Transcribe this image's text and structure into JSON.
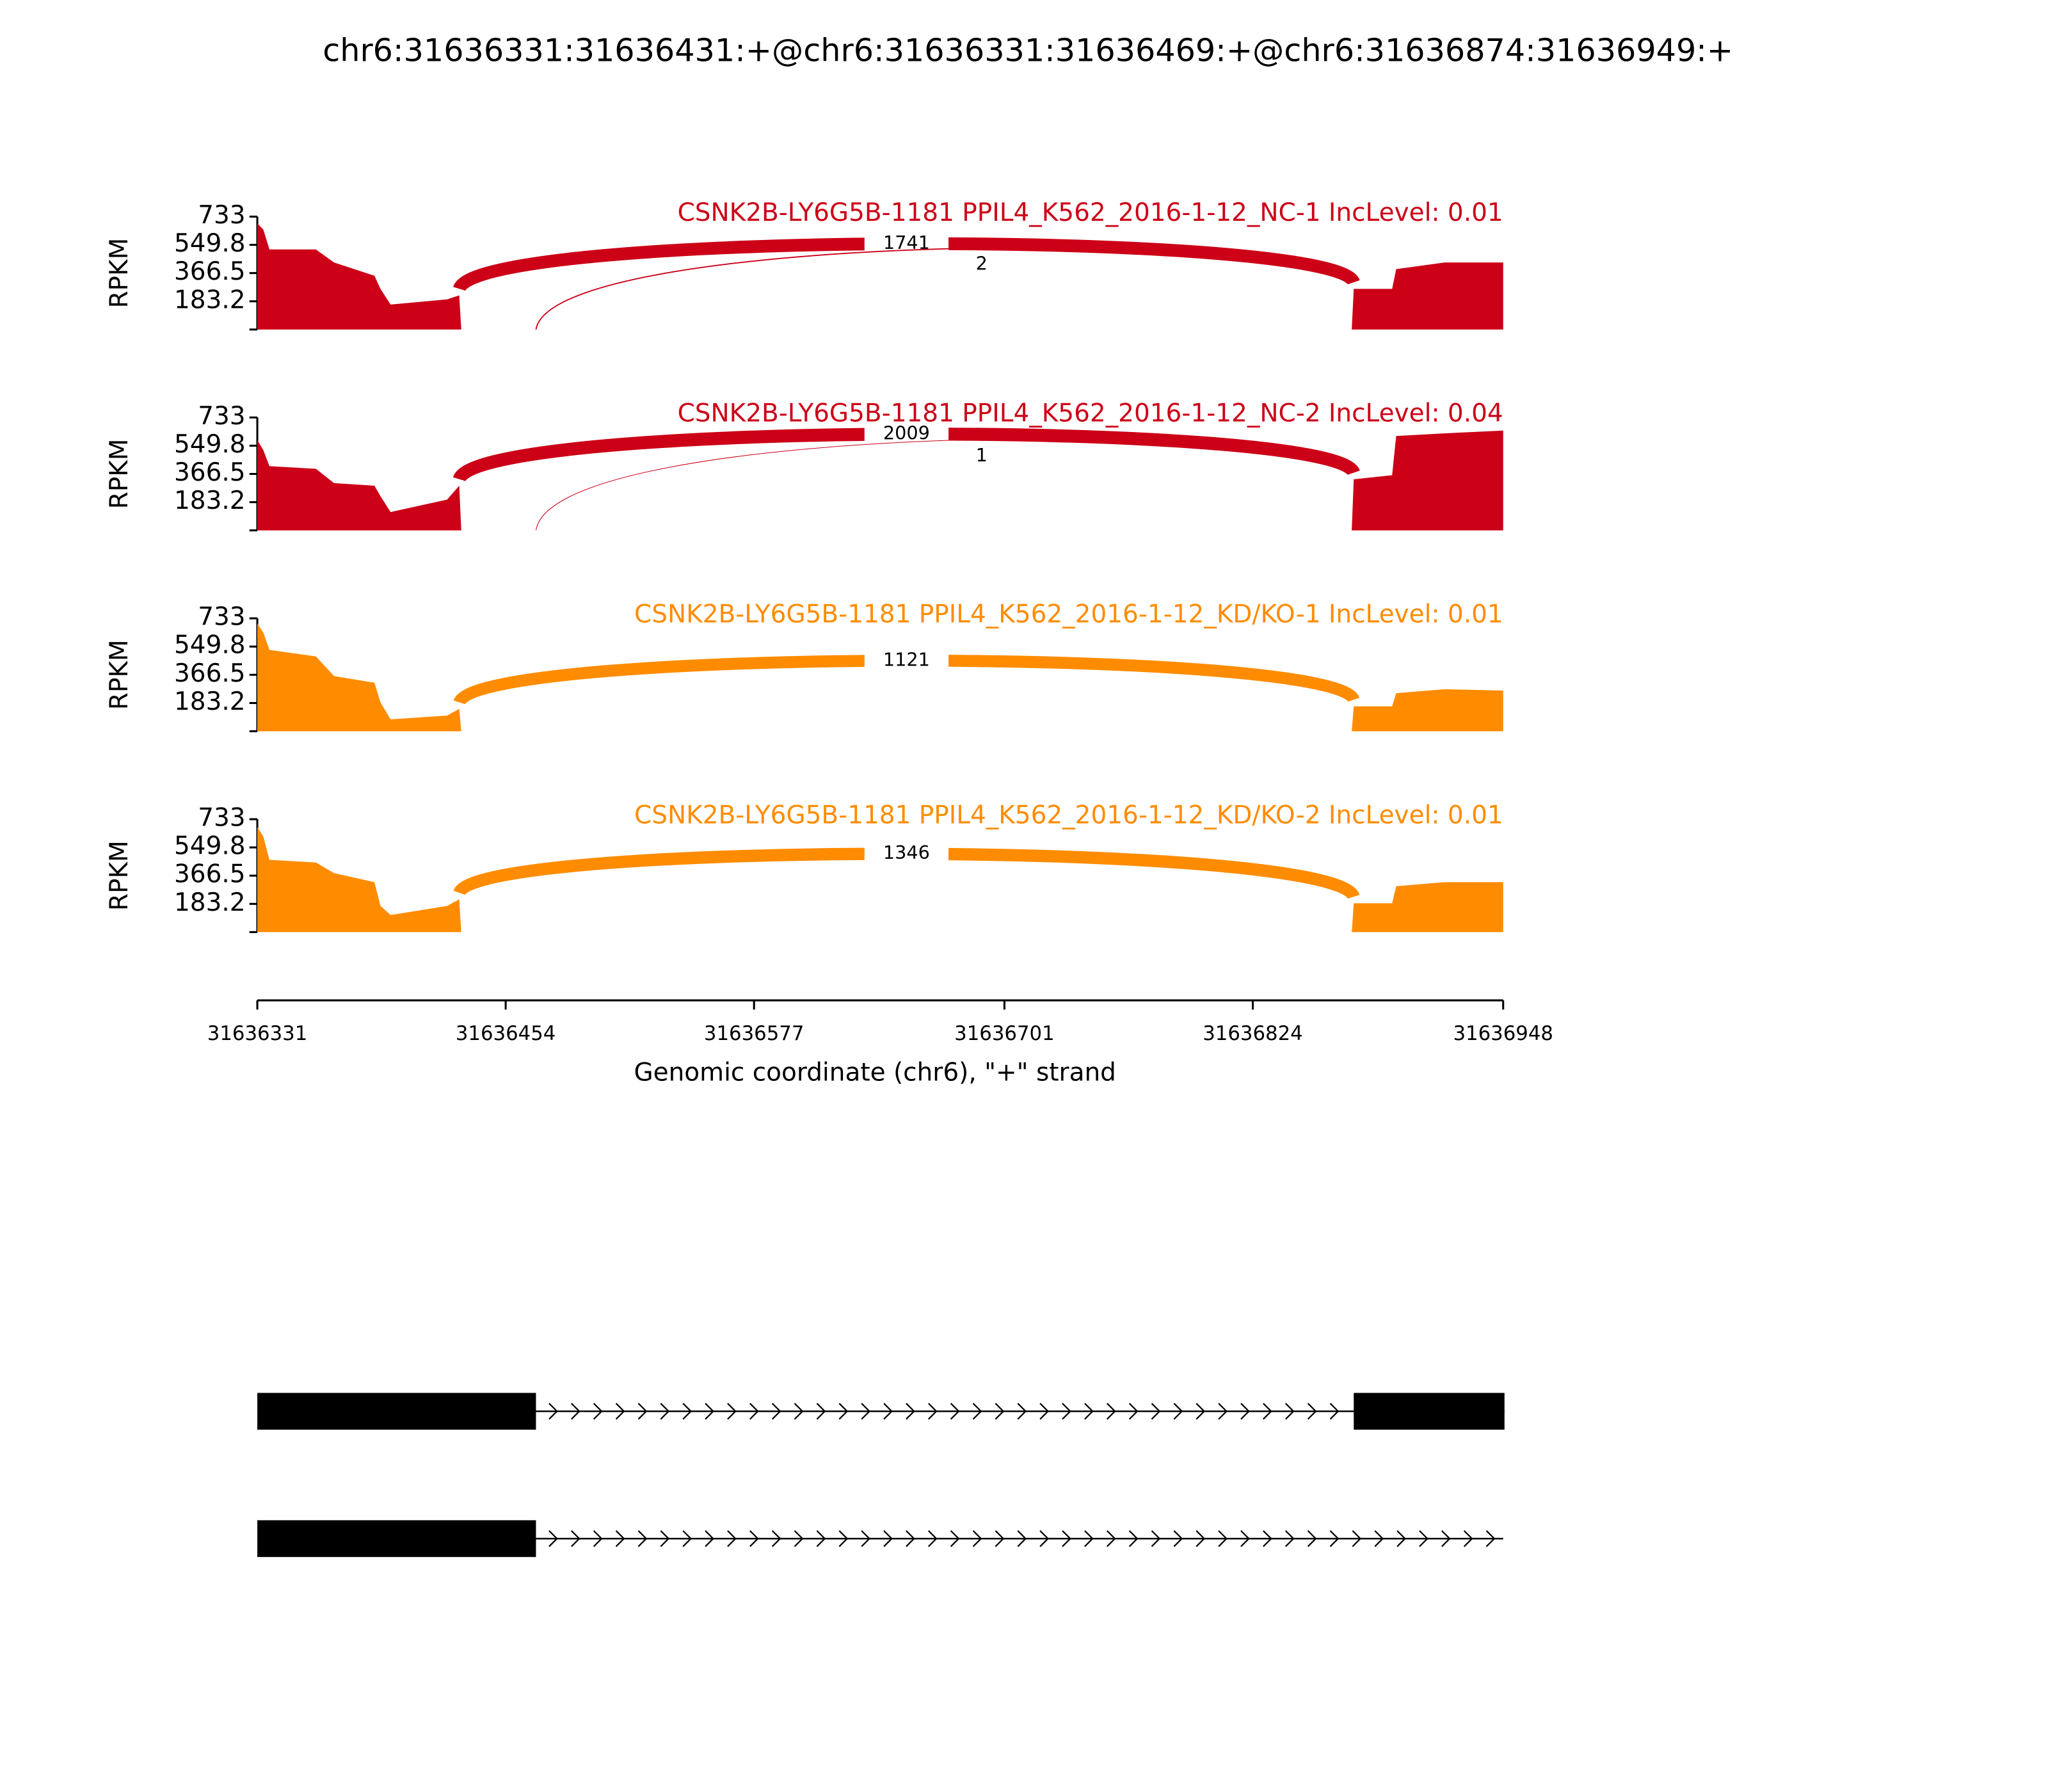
{
  "title": "chr6:31636331:31636431:+@chr6:31636331:31636469:+@chr6:31636874:31636949:+",
  "x_axis": {
    "xlim": [
      31636331,
      31636948
    ],
    "xticks": [
      31636331,
      31636454,
      31636577,
      31636701,
      31636824,
      31636948
    ],
    "xlabel": "Genomic coordinate (chr6), \"+\" strand"
  },
  "chart_data": [
    {
      "type": "area",
      "title": "CSNK2B-LY6G5B-1181 PPIL4_K562_2016-1-12_NC-1 IncLevel: 0.01",
      "ylabel": "RPKM",
      "color": "#cc0017",
      "ylim": [
        0,
        733
      ],
      "yticks": [
        183.2,
        366.5,
        549.8,
        733
      ],
      "x": [
        31636331,
        31636334,
        31636337,
        31636360,
        31636369,
        31636389,
        31636392,
        31636397,
        31636425,
        31636431,
        31636432,
        31636873,
        31636874,
        31636893,
        31636895,
        31636919,
        31636948
      ],
      "values": [
        690,
        648,
        520,
        520,
        435,
        349,
        264,
        162,
        196,
        222,
        0,
        0,
        264,
        264,
        392,
        435,
        435
      ],
      "junctions": [
        {
          "start": 31636431,
          "end": 31636874,
          "count": 1741
        },
        {
          "start": 31636469,
          "end": 31636874,
          "count": 2
        }
      ]
    },
    {
      "type": "area",
      "title": "CSNK2B-LY6G5B-1181 PPIL4_K562_2016-1-12_NC-2 IncLevel: 0.04",
      "ylabel": "RPKM",
      "color": "#cc0017",
      "ylim": [
        0,
        733
      ],
      "yticks": [
        183.2,
        366.5,
        549.8,
        733
      ],
      "x": [
        31636331,
        31636334,
        31636337,
        31636360,
        31636369,
        31636389,
        31636392,
        31636397,
        31636425,
        31636431,
        31636432,
        31636873,
        31636874,
        31636893,
        31636895,
        31636919,
        31636948
      ],
      "values": [
        588,
        520,
        417,
        400,
        307,
        290,
        222,
        119,
        200,
        290,
        0,
        0,
        332,
        358,
        613,
        630,
        648
      ],
      "junctions": [
        {
          "start": 31636431,
          "end": 31636874,
          "count": 2009
        },
        {
          "start": 31636469,
          "end": 31636874,
          "count": 1
        }
      ]
    },
    {
      "type": "area",
      "title": "CSNK2B-LY6G5B-1181 PPIL4_K562_2016-1-12_KD/KO-1 IncLevel: 0.01",
      "ylabel": "RPKM",
      "color": "#ff8c00",
      "ylim": [
        0,
        733
      ],
      "yticks": [
        183.2,
        366.5,
        549.8,
        733
      ],
      "x": [
        31636331,
        31636334,
        31636337,
        31636360,
        31636369,
        31636389,
        31636392,
        31636397,
        31636425,
        31636431,
        31636432,
        31636873,
        31636874,
        31636893,
        31636895,
        31636919,
        31636948
      ],
      "values": [
        699,
        640,
        528,
        486,
        358,
        315,
        187,
        77,
        102,
        145,
        0,
        0,
        162,
        162,
        247,
        273,
        264
      ],
      "junctions": [
        {
          "start": 31636431,
          "end": 31636874,
          "count": 1121
        }
      ]
    },
    {
      "type": "area",
      "title": "CSNK2B-LY6G5B-1181 PPIL4_K562_2016-1-12_KD/KO-2 IncLevel: 0.01",
      "ylabel": "RPKM",
      "color": "#ff8c00",
      "ylim": [
        0,
        733
      ],
      "yticks": [
        183.2,
        366.5,
        549.8,
        733
      ],
      "x": [
        31636331,
        31636334,
        31636337,
        31636360,
        31636369,
        31636389,
        31636392,
        31636397,
        31636425,
        31636431,
        31636432,
        31636873,
        31636874,
        31636893,
        31636895,
        31636919,
        31636948
      ],
      "values": [
        682,
        620,
        469,
        452,
        383,
        324,
        170,
        111,
        170,
        213,
        0,
        0,
        187,
        187,
        298,
        324,
        324
      ],
      "junctions": [
        {
          "start": 31636431,
          "end": 31636874,
          "count": 1346
        }
      ]
    }
  ],
  "gene_models": {
    "transcripts": [
      {
        "start": 31636331,
        "end": 31636949,
        "exons": [
          [
            31636331,
            31636469
          ],
          [
            31636874,
            31636949
          ]
        ]
      },
      {
        "start": 31636331,
        "end": 31636948,
        "exons": [
          [
            31636331,
            31636469
          ]
        ]
      }
    ]
  }
}
